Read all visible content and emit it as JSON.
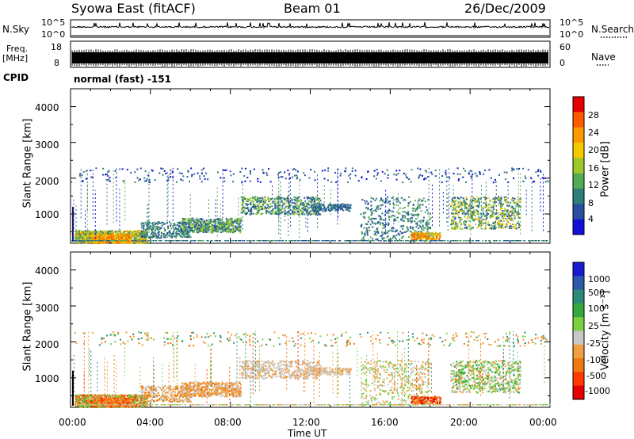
{
  "header": {
    "station": "Syowa East (fitACF)",
    "beam": "Beam 01",
    "date": "26/Dec/2009"
  },
  "sky_panel": {
    "left_label": "N.Sky",
    "right_label": "N.Search",
    "left_ticks": [
      "10^5",
      "10^0"
    ],
    "right_ticks": [
      "10^5",
      "10^0"
    ]
  },
  "freq_panel": {
    "left_label_1": "Freq.",
    "left_label_2": "[MHz]",
    "left_ticks": [
      "18",
      "8"
    ],
    "right_ticks": [
      "60",
      "0"
    ],
    "right_label": "Nave"
  },
  "cpid": {
    "label": "CPID",
    "value": "normal (fast) -151"
  },
  "x_axis": {
    "ticks": [
      "00:00",
      "04:00",
      "08:00",
      "12:00",
      "16:00",
      "20:00",
      "00:00"
    ],
    "label": "Time UT"
  },
  "chart_data": [
    {
      "type": "heatmap",
      "name": "power-panel",
      "ylabel": "Slant Range [km]",
      "yticks": [
        "4000",
        "3000",
        "2000",
        "1000"
      ],
      "ylim": [
        180,
        4500
      ],
      "xlim_hours": [
        0,
        24
      ],
      "colorbar": {
        "label": "Power [dB]",
        "ticks": [
          "28",
          "24",
          "20",
          "16",
          "12",
          "8",
          "4"
        ],
        "colors": [
          "#e60000",
          "#ff5a00",
          "#ff9a00",
          "#f5c800",
          "#9ec82a",
          "#55aa55",
          "#2e7e7a",
          "#2b4fa0",
          "#1010d8"
        ]
      }
    },
    {
      "type": "heatmap",
      "name": "velocity-panel",
      "ylabel": "Slant Range [km]",
      "yticks": [
        "4000",
        "3000",
        "2000",
        "1000"
      ],
      "ylim": [
        180,
        4500
      ],
      "xlim_hours": [
        0,
        24
      ],
      "colorbar": {
        "label": "Velocity [m s⁻¹]",
        "ticks": [
          "1000",
          "500",
          "100",
          "25",
          "-25",
          "-100",
          "-500",
          "-1000"
        ],
        "colors": [
          "#1a1ad0",
          "#2a5aa8",
          "#2e8a78",
          "#34a83a",
          "#7ad040",
          "#c8c8c8",
          "#f0a040",
          "#f07a10",
          "#ff3a00",
          "#e60000"
        ]
      }
    }
  ]
}
